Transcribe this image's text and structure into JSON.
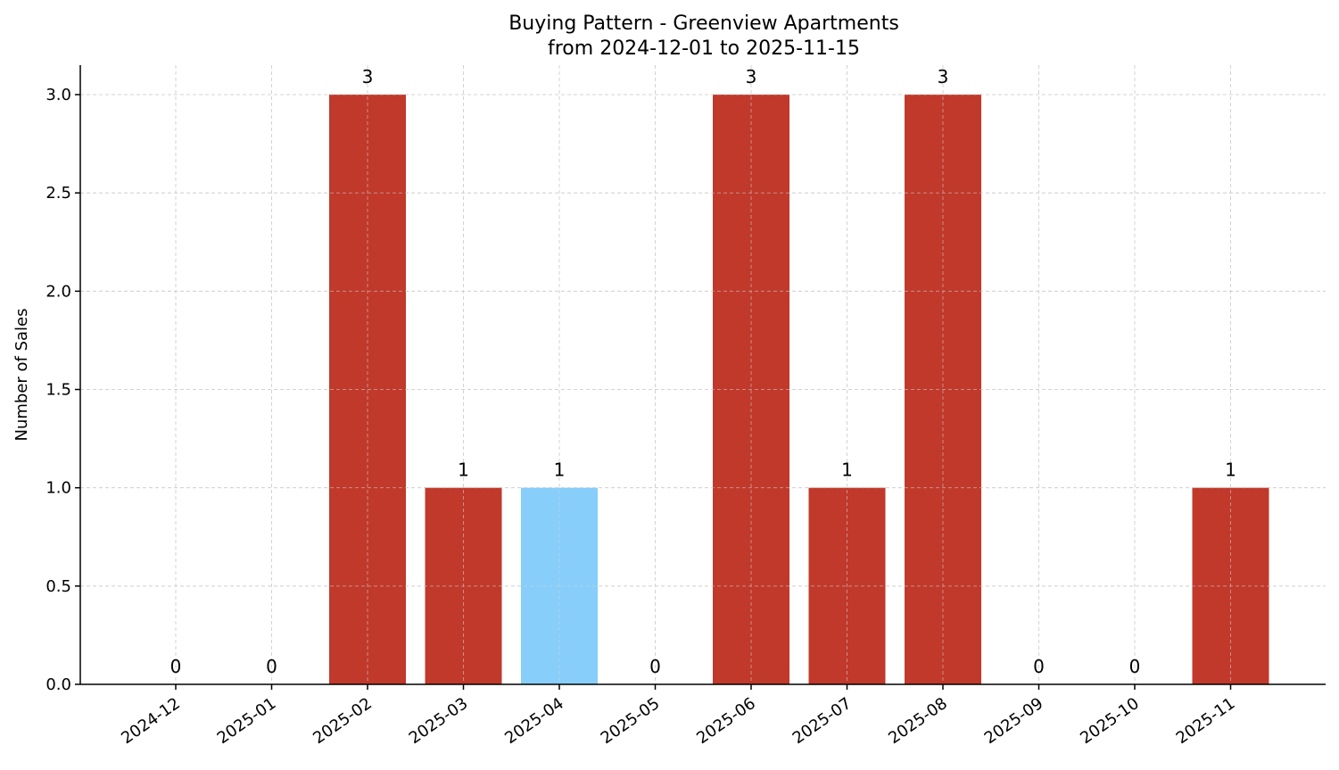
{
  "chart_data": {
    "type": "bar",
    "title": "Buying Pattern - Greenview Apartments",
    "subtitle": "from 2024-12-01 to 2025-11-15",
    "xlabel": "",
    "ylabel": "Number of Sales",
    "categories": [
      "2024-12",
      "2025-01",
      "2025-02",
      "2025-03",
      "2025-04",
      "2025-05",
      "2025-06",
      "2025-07",
      "2025-08",
      "2025-09",
      "2025-10",
      "2025-11"
    ],
    "values": [
      0,
      0,
      3,
      1,
      1,
      0,
      3,
      1,
      3,
      0,
      0,
      1
    ],
    "data_labels": [
      "0",
      "0",
      "3",
      "1",
      "1",
      "0",
      "3",
      "1",
      "3",
      "0",
      "0",
      "1"
    ],
    "highlight_category": "2025-04",
    "ylim": [
      0,
      3.15
    ],
    "yticks": [
      0.0,
      0.5,
      1.0,
      1.5,
      2.0,
      2.5,
      3.0
    ],
    "ytick_labels": [
      "0.0",
      "0.5",
      "1.0",
      "1.5",
      "2.0",
      "2.5",
      "3.0"
    ],
    "grid": true,
    "legend": "none",
    "colors": {
      "bar": "#c0392b",
      "highlight": "#87cefa",
      "grid": "#d3d3d3",
      "axis": "#000000"
    }
  }
}
